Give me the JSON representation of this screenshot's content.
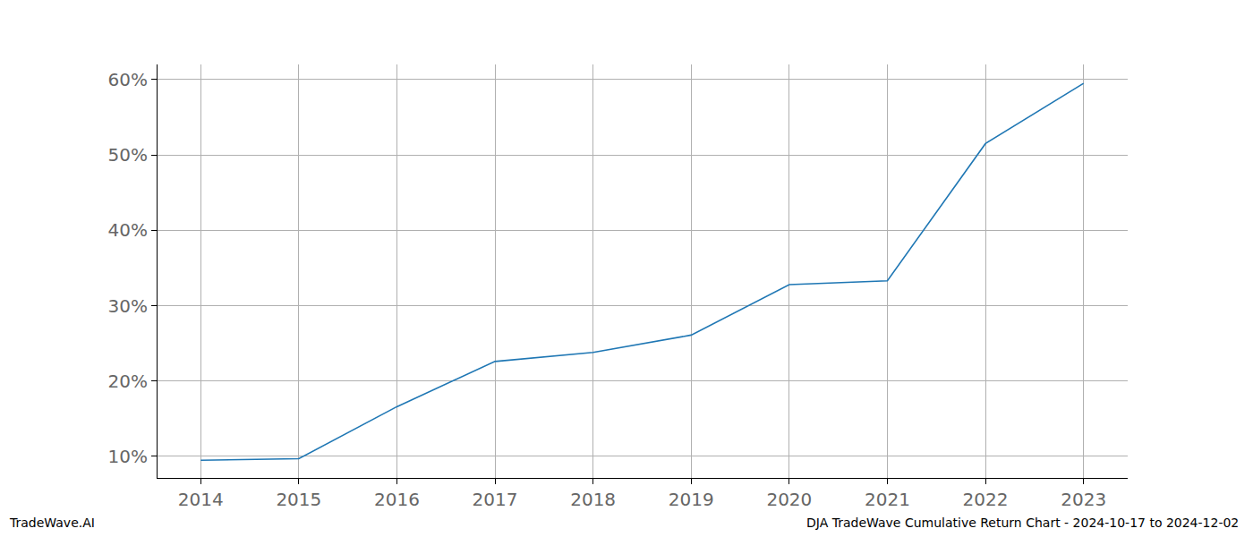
{
  "chart_data": {
    "type": "line",
    "x": [
      2014,
      2015,
      2016,
      2017,
      2018,
      2019,
      2020,
      2021,
      2022,
      2023
    ],
    "values": [
      9.5,
      9.7,
      16.6,
      22.6,
      23.8,
      26.1,
      32.8,
      33.3,
      51.5,
      59.5
    ],
    "color": "#1f77b4",
    "xlim": [
      2013.56,
      2023.45
    ],
    "xticks": [
      2014,
      2015,
      2016,
      2017,
      2018,
      2019,
      2020,
      2021,
      2022,
      2023
    ],
    "ylim": [
      7.15,
      62.0
    ],
    "yticks": [
      {
        "value": 10,
        "label": "10%"
      },
      {
        "value": 20,
        "label": "20%"
      },
      {
        "value": 30,
        "label": "30%"
      },
      {
        "value": 40,
        "label": "40%"
      },
      {
        "value": 50,
        "label": "50%"
      },
      {
        "value": 60,
        "label": "60%"
      }
    ],
    "grid": true,
    "annotations": [
      "TradeWave.AI",
      "DJA TradeWave Cumulative Return Chart - 2024-10-17 to 2024-12-02"
    ]
  }
}
